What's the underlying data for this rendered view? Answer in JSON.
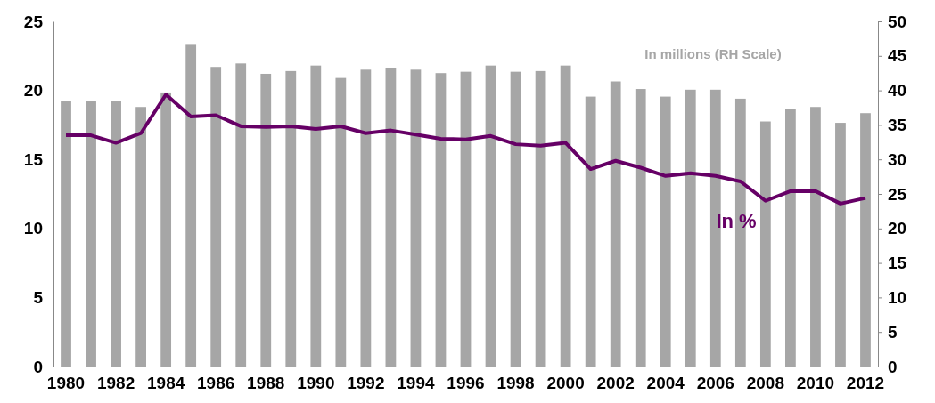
{
  "chart_data": {
    "type": "bar",
    "categories": [
      "1980",
      null,
      "1982",
      null,
      "1984",
      null,
      "1986",
      null,
      "1988",
      null,
      "1990",
      null,
      "1992",
      null,
      "1994",
      null,
      "1996",
      null,
      "1998",
      null,
      "2000",
      null,
      "2002",
      null,
      "2004",
      null,
      "2006",
      null,
      "2008",
      null,
      "2010",
      null,
      "2012"
    ],
    "series": [
      {
        "name": "In millions (RH Scale)",
        "axis": "y2",
        "color": "#a6a6a6",
        "values": [
          38.4,
          38.4,
          38.4,
          37.6,
          39.7,
          46.6,
          43.4,
          43.9,
          42.4,
          42.8,
          43.6,
          41.8,
          43.0,
          43.3,
          43.0,
          42.5,
          42.7,
          43.6,
          42.7,
          42.8,
          43.6,
          39.1,
          41.3,
          40.2,
          39.1,
          40.1,
          40.1,
          38.8,
          35.5,
          37.3,
          37.6,
          35.3,
          36.7
        ]
      },
      {
        "name": "In %",
        "type": "line",
        "color": "#660066",
        "values": [
          16.75,
          16.75,
          16.2,
          16.9,
          19.7,
          18.1,
          18.2,
          17.4,
          17.35,
          17.4,
          17.2,
          17.4,
          16.9,
          17.1,
          16.8,
          16.5,
          16.45,
          16.7,
          16.1,
          16.0,
          16.2,
          14.3,
          14.9,
          14.4,
          13.8,
          14.0,
          13.8,
          13.4,
          12.0,
          12.7,
          12.7,
          11.8,
          12.2
        ]
      }
    ],
    "ylim": [
      0,
      25
    ],
    "yticks": [
      0,
      5,
      10,
      15,
      20,
      25
    ],
    "y2lim": [
      0,
      50
    ],
    "y2ticks": [
      0,
      5,
      10,
      15,
      20,
      25,
      30,
      35,
      40,
      45,
      50
    ],
    "grid": false,
    "marker": "none",
    "line_style": "solid"
  }
}
